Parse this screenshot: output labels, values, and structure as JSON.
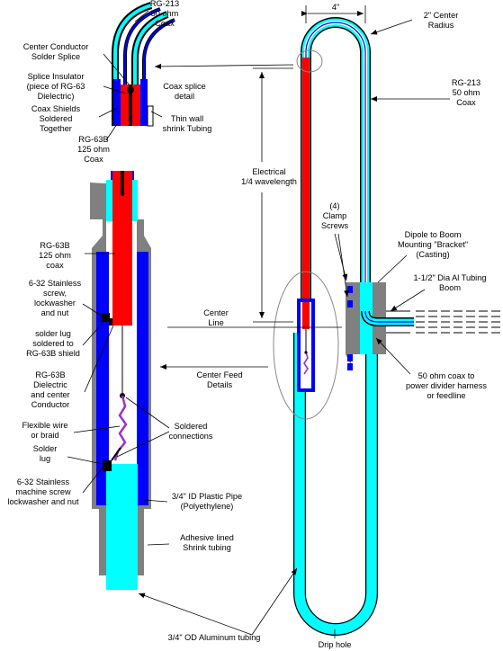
{
  "labels": {
    "rg213_top_line1": "RG-213",
    "rg213_top_line2": "50 ohm",
    "rg213_top_line3": "Coax",
    "center_conductor_line1": "Center Conductor",
    "center_conductor_line2": "Solder Splice",
    "splice_insulator_line1": "Splice Insulator",
    "splice_insulator_line2": "(piece of RG-63",
    "splice_insulator_line3": "Dielectric)",
    "coax_shields_line1": "Coax Shields",
    "coax_shields_line2": "Soldered",
    "coax_shields_line3": "Together",
    "coax_splice_line1": "Coax splice",
    "coax_splice_line2": "detail",
    "thin_wall_line1": "Thin wall",
    "thin_wall_line2": "shrink Tubing",
    "rg63b_top_line1": "RG-63B",
    "rg63b_top_line2": "125 ohm",
    "rg63b_top_line3": "Coax",
    "dim_width": "4\"",
    "center_radius_line1": "2\" Center",
    "center_radius_line2": "Radius",
    "rg213_right_line1": "RG-213",
    "rg213_right_line2": "50 ohm",
    "rg213_right_line3": "Coax",
    "electrical_line1": "Electrical",
    "electrical_line2": "1/4 wavelength",
    "clamp_line1": "(4)",
    "clamp_line2": "Clamp",
    "clamp_line3": "Screws",
    "dipole_line1": "Dipole to Boom",
    "dipole_line2": "Mounting \"Bracket\"",
    "dipole_line3": "(Casting)",
    "boom_line1": "1-1/2\" Dia Al Tubing",
    "boom_line2": "Boom",
    "rg63b_left_line1": "RG-63B",
    "rg63b_left_line2": "125 ohm",
    "rg63b_left_line3": "coax",
    "screw_line1": "6-32 Stainless",
    "screw_line2": "screw,",
    "screw_line3": "lockwasher",
    "screw_line4": "and nut",
    "center_line_line1": "Center",
    "center_line_line2": "Line",
    "solder_lug_shield_line1": "solder lug",
    "solder_lug_shield_line2": "soldered to",
    "solder_lug_shield_line3": "RG-63B shield",
    "dielectric_line1": "RG-63B",
    "dielectric_line2": "Dielectric",
    "dielectric_line3": "and center",
    "dielectric_line4": "Conductor",
    "center_feed_line1": "Center Feed",
    "center_feed_line2": "Details",
    "coax_50_line1": "50 ohm coax to",
    "coax_50_line2": "power divider harness",
    "coax_50_line3": "or feedline",
    "flex_wire_line1": "Flexible wire",
    "flex_wire_line2": "or braid",
    "soldered_conn_line1": "Soldered",
    "soldered_conn_line2": "connections",
    "solder_lug_line1": "Solder",
    "solder_lug_line2": "lug",
    "machine_screw_line1": "6-32 Stainless",
    "machine_screw_line2": "machine screw",
    "machine_screw_line3": "lockwasher and nut",
    "plastic_pipe_line1": "3/4\" ID Plastic Pipe",
    "plastic_pipe_line2": "(Polyethylene)",
    "shrink_line1": "Adhesive lined",
    "shrink_line2": "Shrink tubing",
    "aluminum_tubing": "3/4\" OD Aluminum tubing",
    "drip_hole": "Drip hole"
  },
  "colors": {
    "coax_black": "#000000",
    "dielectric_blue": "#0000ff",
    "tubing_cyan": "#00ffff",
    "center_red": "#ff0000",
    "shrink_gray": "#808080",
    "wire_purple": "#9933cc",
    "ellipse_gray": "#888888",
    "background": "#ffffff"
  }
}
